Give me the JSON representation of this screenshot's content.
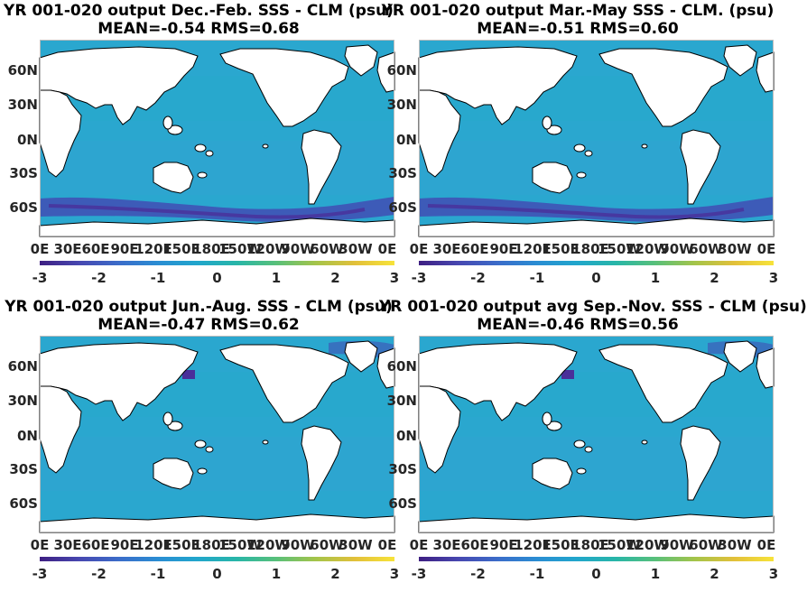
{
  "colors": {
    "ocean": "#2aa7cf",
    "ocean_dark": "#3d5bb8",
    "deep_purple": "#4a2f9a",
    "land": "#ffffff",
    "coast": "#000000"
  },
  "colormap": [
    "#3e1f82",
    "#4747b0",
    "#3b6cc9",
    "#2a8dd3",
    "#21a6cc",
    "#28b6a8",
    "#58c07a",
    "#a4c44a",
    "#e2c03a",
    "#f7e33a"
  ],
  "lat_ticks": [
    "60N",
    "30N",
    "0N",
    "30S",
    "60S"
  ],
  "lon_ticks": [
    "0E",
    "30E",
    "60E",
    "90E",
    "120E",
    "150E",
    "180E",
    "150W",
    "120W",
    "90W",
    "60W",
    "30W",
    "0E"
  ],
  "colorbar_ticks": [
    "-3",
    "-2",
    "-1",
    "0",
    "1",
    "2",
    "3"
  ],
  "panels": [
    {
      "title_line1": "YR 001-020 output  Dec.-Feb. SSS - CLM (psu)",
      "title_line2": "MEAN=-0.54   RMS=0.68"
    },
    {
      "title_line1": "YR 001-020 output Mar.-May SSS - CLM. (psu)",
      "title_line2": "MEAN=-0.51   RMS=0.60"
    },
    {
      "title_line1": "YR 001-020 output Jun.-Aug. SSS - CLM (psu)",
      "title_line2": "MEAN=-0.47   RMS=0.62"
    },
    {
      "title_line1": "YR 001-020 output avg Sep.-Nov. SSS - CLM (psu)",
      "title_line2": "MEAN=-0.46   RMS=0.56"
    }
  ],
  "chart_data": [
    {
      "type": "heatmap",
      "title": "YR 001-020 output  Dec.-Feb. SSS - CLM (psu)",
      "subtitle": "MEAN=-0.54   RMS=0.68",
      "mean": -0.54,
      "rms": 0.68,
      "xlim": [
        0,
        360
      ],
      "ylim": [
        -80,
        80
      ],
      "clim": [
        -3,
        3
      ],
      "x_ticklabels": [
        "0E",
        "30E",
        "60E",
        "90E",
        "120E",
        "150E",
        "180E",
        "150W",
        "120W",
        "90W",
        "60W",
        "30W",
        "0E"
      ],
      "y_ticklabels": [
        "60N",
        "30N",
        "0N",
        "30S",
        "60S"
      ],
      "colorbar_ticks": [
        -3,
        -2,
        -1,
        0,
        1,
        2,
        3
      ]
    },
    {
      "type": "heatmap",
      "title": "YR 001-020 output Mar.-May SSS - CLM. (psu)",
      "subtitle": "MEAN=-0.51   RMS=0.60",
      "mean": -0.51,
      "rms": 0.6,
      "xlim": [
        0,
        360
      ],
      "ylim": [
        -80,
        80
      ],
      "clim": [
        -3,
        3
      ],
      "x_ticklabels": [
        "0E",
        "30E",
        "60E",
        "90E",
        "120E",
        "150E",
        "180E",
        "150W",
        "120W",
        "90W",
        "60W",
        "30W",
        "0E"
      ],
      "y_ticklabels": [
        "60N",
        "30N",
        "0N",
        "30S",
        "60S"
      ],
      "colorbar_ticks": [
        -3,
        -2,
        -1,
        0,
        1,
        2,
        3
      ]
    },
    {
      "type": "heatmap",
      "title": "YR 001-020 output Jun.-Aug. SSS - CLM (psu)",
      "subtitle": "MEAN=-0.47   RMS=0.62",
      "mean": -0.47,
      "rms": 0.62,
      "xlim": [
        0,
        360
      ],
      "ylim": [
        -80,
        80
      ],
      "clim": [
        -3,
        3
      ],
      "x_ticklabels": [
        "0E",
        "30E",
        "60E",
        "90E",
        "120E",
        "150E",
        "180E",
        "150W",
        "120W",
        "90W",
        "60W",
        "30W",
        "0E"
      ],
      "y_ticklabels": [
        "60N",
        "30N",
        "0N",
        "30S",
        "60S"
      ],
      "colorbar_ticks": [
        -3,
        -2,
        -1,
        0,
        1,
        2,
        3
      ]
    },
    {
      "type": "heatmap",
      "title": "YR 001-020 output avg Sep.-Nov. SSS - CLM (psu)",
      "subtitle": "MEAN=-0.46   RMS=0.56",
      "mean": -0.46,
      "rms": 0.56,
      "xlim": [
        0,
        360
      ],
      "ylim": [
        -80,
        80
      ],
      "clim": [
        -3,
        3
      ],
      "x_ticklabels": [
        "0E",
        "30E",
        "60E",
        "90E",
        "120E",
        "150E",
        "180E",
        "150W",
        "120W",
        "90W",
        "60W",
        "30W",
        "0E"
      ],
      "y_ticklabels": [
        "60N",
        "30N",
        "0N",
        "30S",
        "60S"
      ],
      "colorbar_ticks": [
        -3,
        -2,
        -1,
        0,
        1,
        2,
        3
      ]
    }
  ]
}
